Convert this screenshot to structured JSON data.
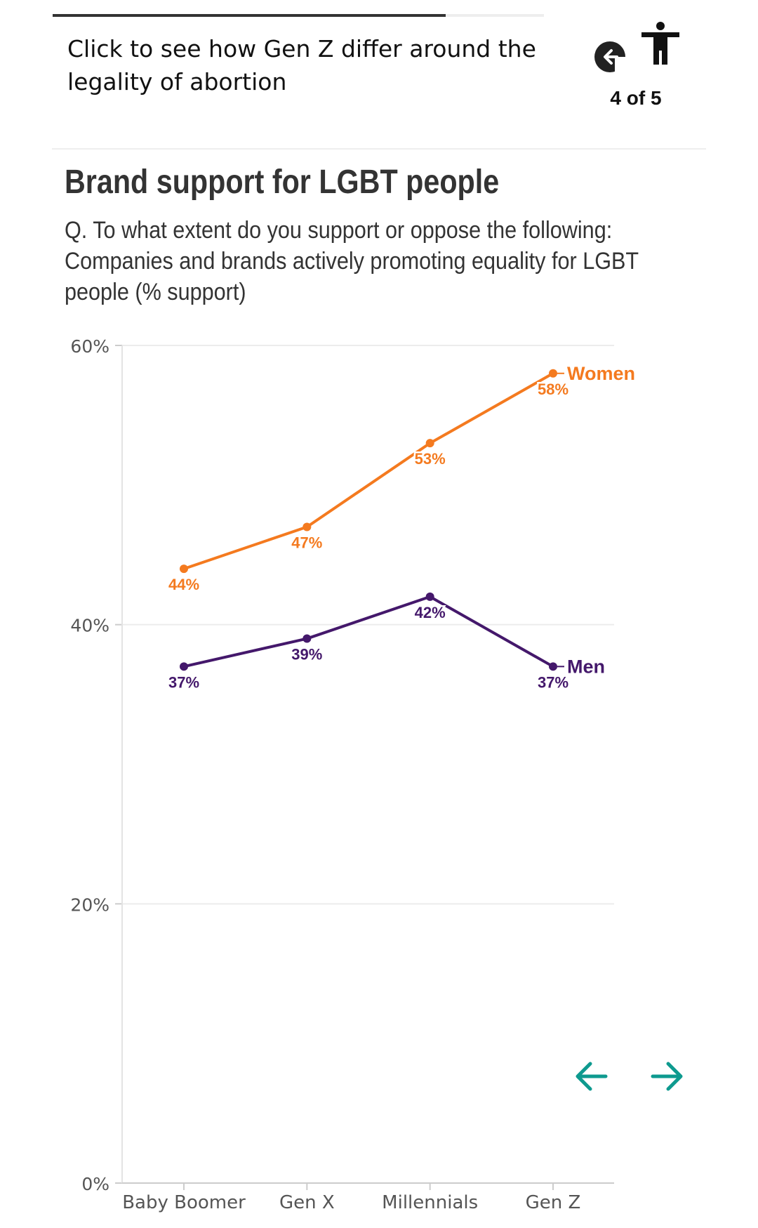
{
  "stepper": {
    "text": "Click to see how Gen Z differ around the legality of abortion",
    "counter": "4 of 5",
    "progress_fraction": 0.8,
    "back_icon": "arrow-left-circle-icon",
    "accessibility_icon": "accessibility-person-icon"
  },
  "navigation": {
    "prev_icon": "arrow-left-icon",
    "next_icon": "arrow-right-icon",
    "color": "#0e9a8f"
  },
  "chart_data": {
    "type": "line",
    "title": "Brand support for LGBT people",
    "subtitle": "Q. To what extent do you support or oppose the following: Companies and brands actively promoting equality for LGBT people (% support)",
    "categories": [
      "Baby Boomer",
      "Gen X",
      "Millennials",
      "Gen Z"
    ],
    "series": [
      {
        "name": "Women",
        "values": [
          44,
          47,
          53,
          58
        ],
        "color": "#f47a1f"
      },
      {
        "name": "Men",
        "values": [
          37,
          39,
          42,
          37
        ],
        "color": "#44186b"
      }
    ],
    "y_ticks": [
      0,
      20,
      40,
      60
    ],
    "y_tick_labels": [
      "0%",
      "20%",
      "40%",
      "60%"
    ],
    "ylim": [
      0,
      60
    ],
    "value_suffix": "%",
    "grid": true,
    "legend": "direct labels at line ends"
  }
}
